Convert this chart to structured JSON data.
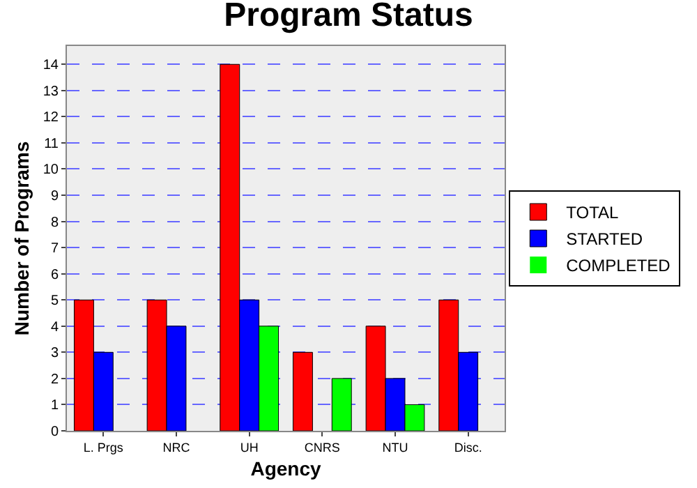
{
  "chart_data": {
    "type": "bar",
    "title": "Program Status",
    "xlabel": "Agency",
    "ylabel": "Number of Programs",
    "categories": [
      "L. Prgs",
      "NRC",
      "UH",
      "CNRS",
      "NTU",
      "Disc."
    ],
    "series": [
      {
        "name": "TOTAL",
        "color": "#ff0000",
        "values": [
          5,
          5,
          14,
          3,
          4,
          5
        ]
      },
      {
        "name": "STARTED",
        "color": "#0000ff",
        "values": [
          3,
          4,
          5,
          0,
          2,
          3
        ]
      },
      {
        "name": "COMPLETED",
        "color": "#00ff00",
        "values": [
          0,
          0,
          4,
          2,
          1,
          0
        ]
      }
    ],
    "ylim": [
      0,
      14.7
    ],
    "yticks": [
      0,
      1,
      2,
      3,
      4,
      5,
      6,
      7,
      8,
      9,
      10,
      11,
      12,
      13,
      14
    ],
    "grid": "y",
    "legend": "right"
  }
}
